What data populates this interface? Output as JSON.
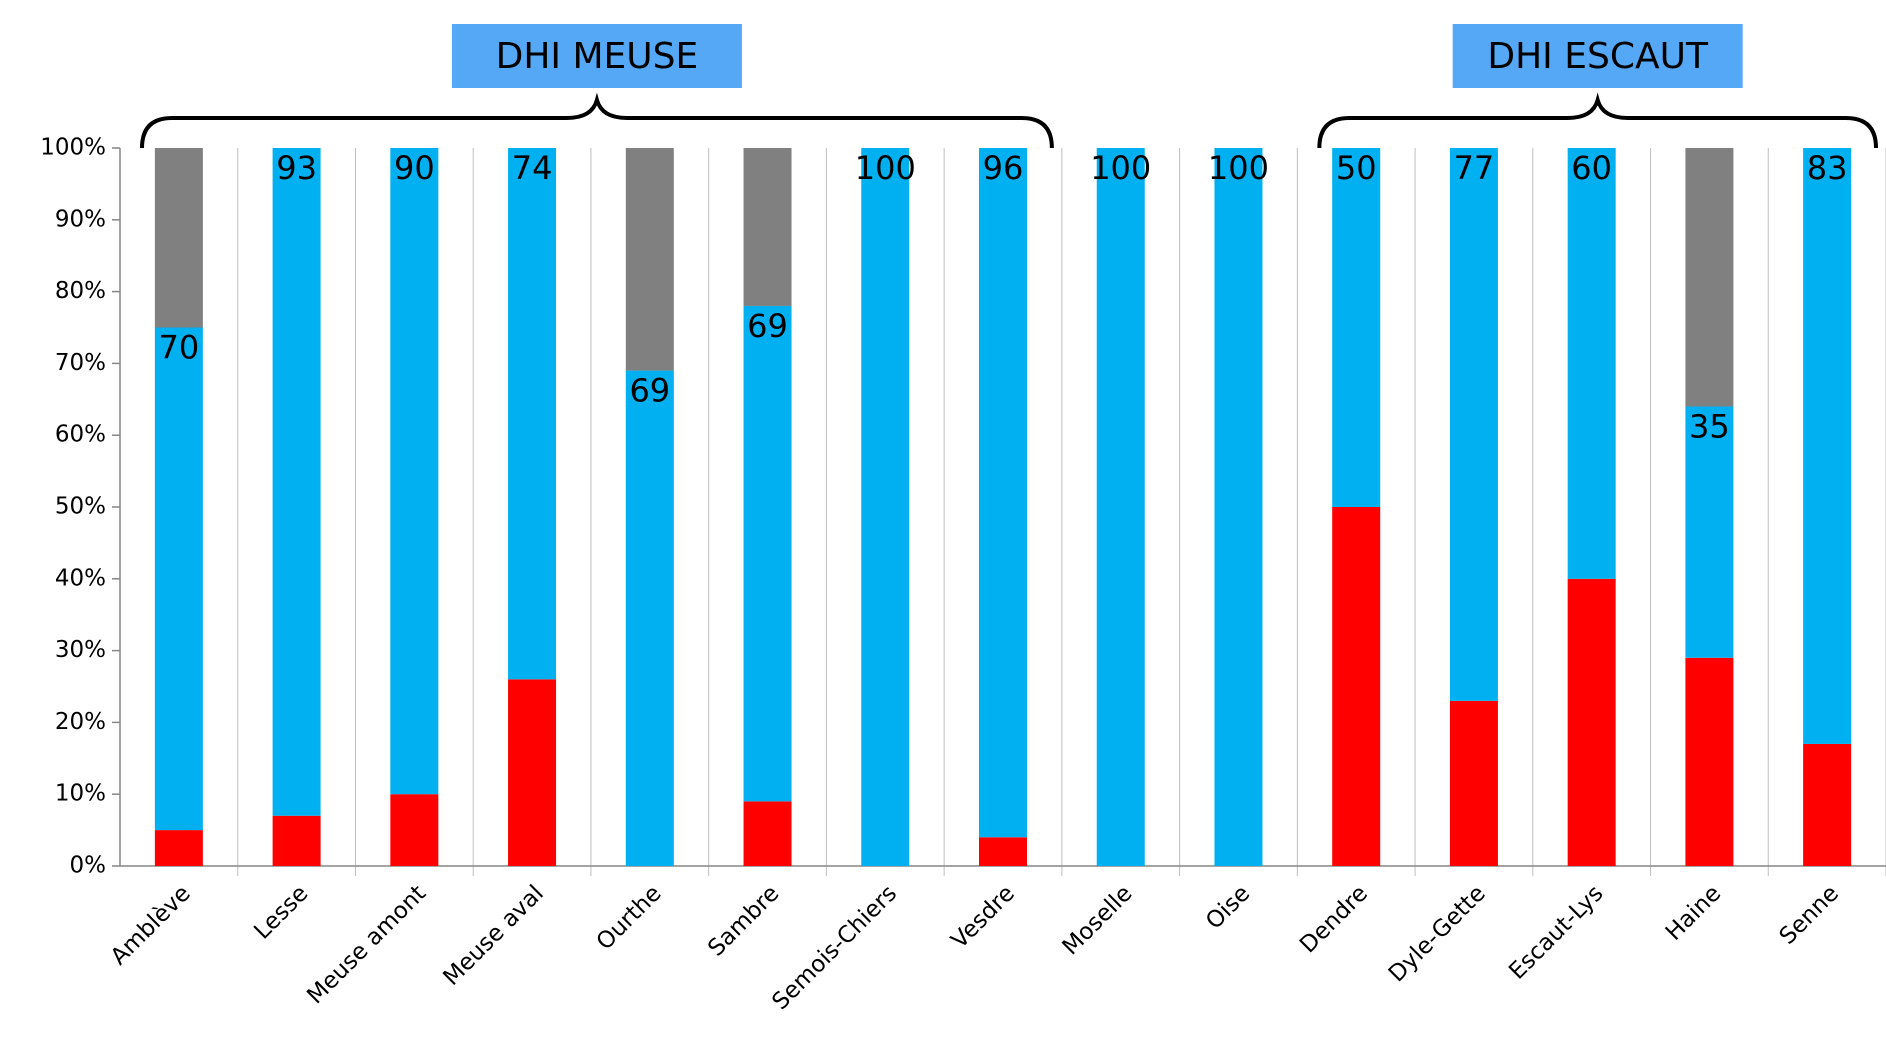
{
  "chart_data": {
    "type": "stacked-bar",
    "categories": [
      "Amblève",
      "Lesse",
      "Meuse amont",
      "Meuse aval",
      "Ourthe",
      "Sambre",
      "Semois-Chiers",
      "Vesdre",
      "Moselle",
      "Oise",
      "Dendre",
      "Dyle-Gette",
      "Escaut-Lys",
      "Haine",
      "Senne"
    ],
    "series": [
      {
        "color": "#ff0000",
        "values": [
          5,
          7,
          10,
          26,
          0,
          9,
          0,
          4,
          0,
          0,
          50,
          23,
          40,
          29,
          17
        ]
      },
      {
        "color": "#00b0f0",
        "values": [
          70,
          93,
          90,
          74,
          69,
          69,
          100,
          96,
          100,
          100,
          50,
          77,
          60,
          35,
          83
        ],
        "data_labels": true
      },
      {
        "color": "#808080",
        "values": [
          25,
          0,
          0,
          0,
          31,
          22,
          0,
          0,
          0,
          0,
          0,
          0,
          0,
          36,
          0
        ]
      }
    ],
    "ylim": [
      0,
      100
    ],
    "yticks": [
      {
        "value": 0,
        "label": "0%"
      },
      {
        "value": 10,
        "label": "10%"
      },
      {
        "value": 20,
        "label": "20%"
      },
      {
        "value": 30,
        "label": "30%"
      },
      {
        "value": 40,
        "label": "40%"
      },
      {
        "value": 50,
        "label": "50%"
      },
      {
        "value": 60,
        "label": "60%"
      },
      {
        "value": 70,
        "label": "70%"
      },
      {
        "value": 80,
        "label": "80%"
      },
      {
        "value": 90,
        "label": "90%"
      },
      {
        "value": 100,
        "label": "100%"
      }
    ],
    "category_grid": true,
    "annotations": [
      {
        "text": "DHI MEUSE",
        "from": 0,
        "to": 7
      },
      {
        "text": "DHI ESCAUT",
        "from": 10,
        "to": 14
      }
    ]
  }
}
